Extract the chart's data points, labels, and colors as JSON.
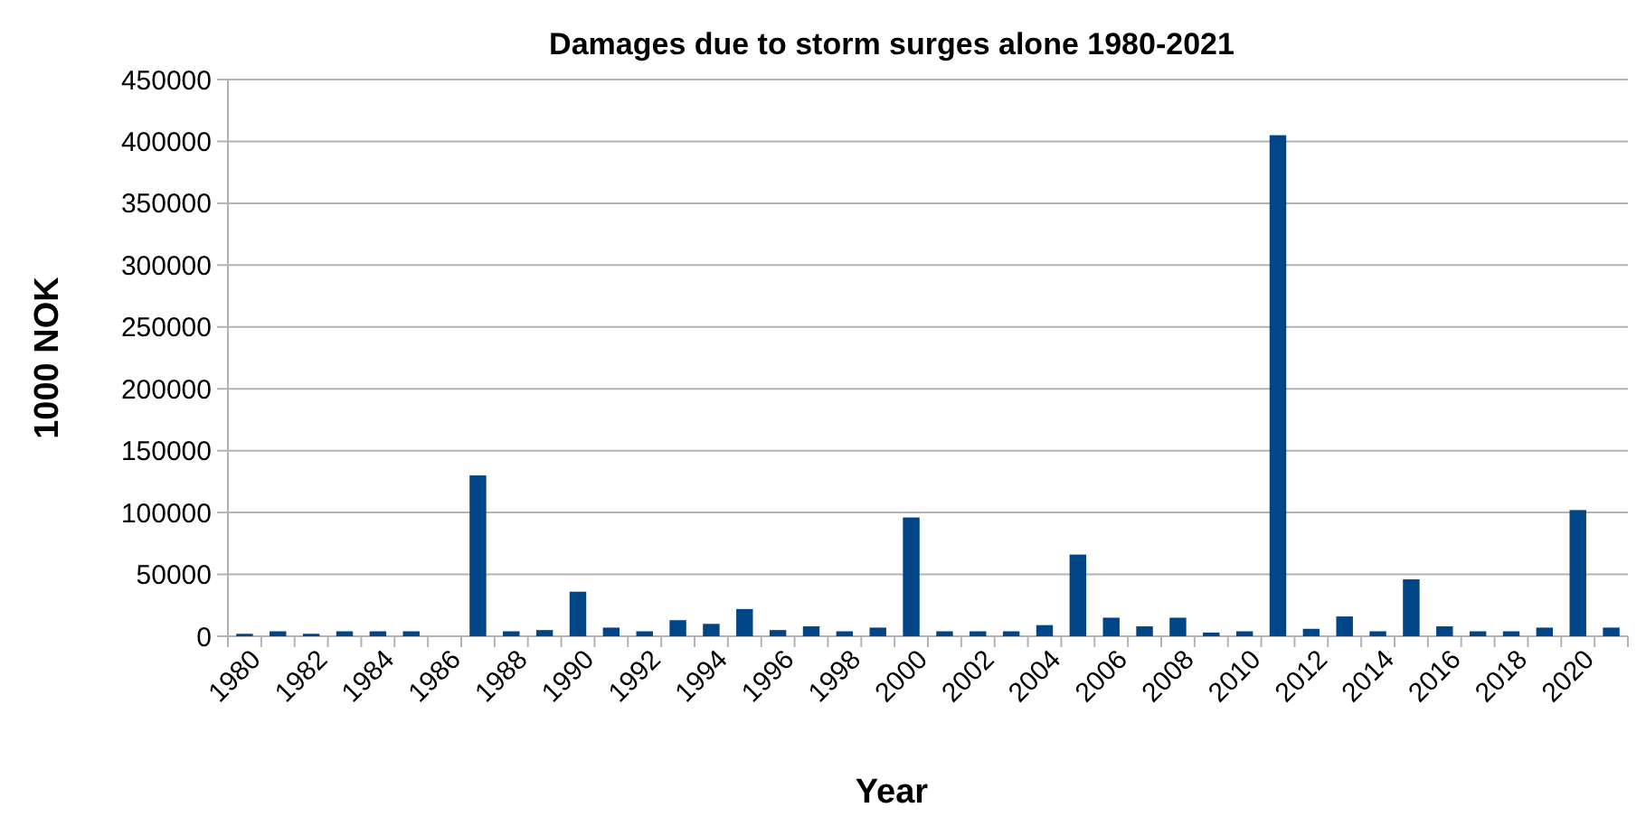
{
  "chart_data": {
    "type": "bar",
    "title": "Damages due to storm surges alone 1980-2021",
    "xlabel": "Year",
    "ylabel": "1000 NOK",
    "categories": [
      "1980",
      null,
      "1982",
      null,
      "1984",
      null,
      "1986",
      null,
      "1988",
      null,
      "1990",
      null,
      "1992",
      null,
      "1994",
      null,
      "1996",
      null,
      "1998",
      null,
      "2000",
      null,
      "2002",
      null,
      "2004",
      null,
      "2006",
      null,
      "2008",
      null,
      "2010",
      null,
      "2012",
      null,
      "2014",
      null,
      "2016",
      null,
      "2018",
      null,
      "2020",
      null
    ],
    "values": [
      2000,
      4000,
      2000,
      4000,
      4000,
      4000,
      0,
      130000,
      4000,
      5000,
      36000,
      7000,
      4000,
      13000,
      10000,
      22000,
      5000,
      8000,
      4000,
      7000,
      96000,
      4000,
      4000,
      4000,
      9000,
      66000,
      15000,
      8000,
      15000,
      3000,
      4000,
      405000,
      6000,
      16000,
      4000,
      46000,
      8000,
      4000,
      4000,
      7000,
      102000,
      7000
    ],
    "color": "#004586",
    "ylim": [
      0,
      450000
    ],
    "yticks": [
      0,
      50000,
      100000,
      150000,
      200000,
      250000,
      300000,
      350000,
      400000,
      450000
    ],
    "grid": "y"
  }
}
